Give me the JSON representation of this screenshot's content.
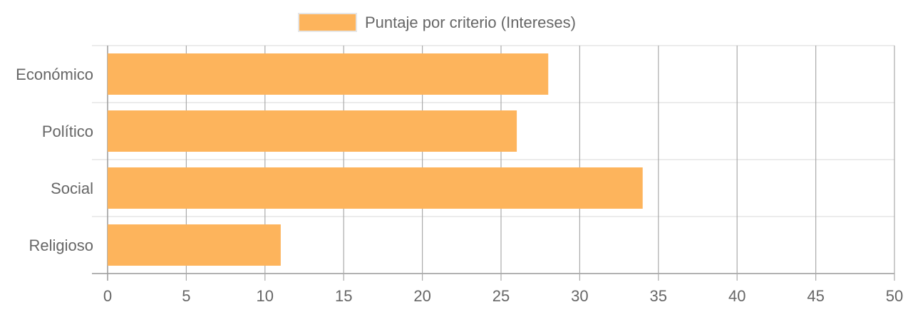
{
  "chart_data": {
    "type": "bar",
    "orientation": "horizontal",
    "categories": [
      "Económico",
      "Político",
      "Social",
      "Religioso"
    ],
    "series": [
      {
        "name": "Puntaje por criterio (Intereses)",
        "values": [
          28,
          26,
          34,
          11
        ],
        "color": "#FDB45C"
      }
    ],
    "xlim": [
      0,
      50
    ],
    "x_ticks": [
      0,
      5,
      10,
      15,
      20,
      25,
      30,
      35,
      40,
      45,
      50
    ],
    "grid": true,
    "legend": "top-center"
  }
}
